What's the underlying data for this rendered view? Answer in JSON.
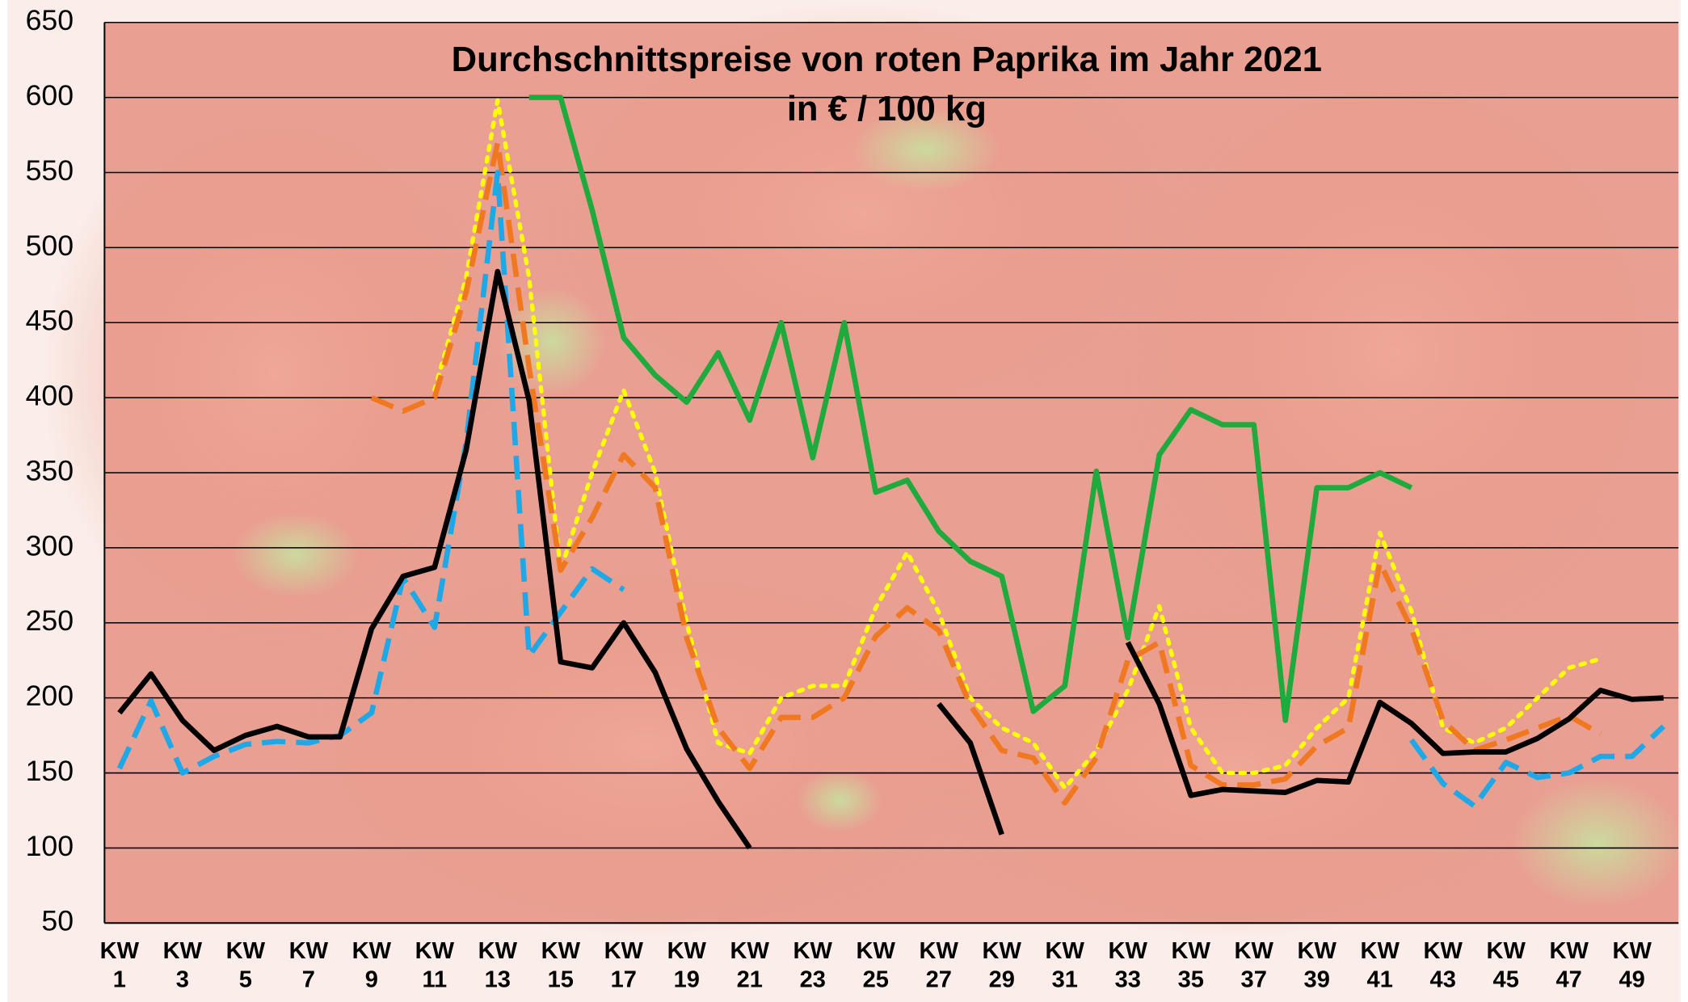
{
  "chart_data": {
    "type": "line",
    "title": "Durchschnittspreise von roten Paprika im Jahr 2021",
    "subtitle": "in € / 100 kg",
    "categories": [
      "KW 1",
      null,
      "KW 3",
      null,
      "KW 5",
      null,
      "KW 7",
      null,
      "KW 9",
      null,
      "KW 11",
      null,
      "KW 13",
      null,
      "KW 15",
      null,
      "KW 17",
      null,
      "KW 19",
      null,
      "KW 21",
      null,
      "KW 23",
      null,
      "KW 25",
      null,
      "KW 27",
      null,
      "KW 29",
      null,
      "KW 31",
      null,
      "KW 33",
      null,
      "KW 35",
      null,
      "KW 37",
      null,
      "KW 39",
      null,
      "KW 41",
      null,
      "KW 43",
      null,
      "KW 45",
      null,
      "KW 47",
      null,
      "KW 49",
      null
    ],
    "series": [
      {
        "color": "#ffff00",
        "dash": "dotted",
        "values": [
          null,
          null,
          null,
          null,
          null,
          null,
          null,
          null,
          null,
          null,
          405,
          480,
          598,
          480,
          285,
          350,
          405,
          350,
          250,
          170,
          163,
          200,
          208,
          208,
          260,
          297,
          257,
          200,
          180,
          170,
          140,
          165,
          205,
          261,
          180,
          150,
          150,
          155,
          180,
          200,
          310,
          258,
          180,
          170,
          180,
          200,
          220,
          226,
          null,
          null
        ]
      },
      {
        "color": "#f07820",
        "dash": "dashed",
        "values": [
          null,
          null,
          null,
          null,
          null,
          null,
          null,
          null,
          400,
          391,
          400,
          470,
          570,
          420,
          285,
          320,
          362,
          340,
          240,
          180,
          153,
          187,
          187,
          200,
          241,
          260,
          245,
          195,
          165,
          160,
          130,
          160,
          225,
          237,
          155,
          142,
          142,
          146,
          168,
          180,
          290,
          246,
          185,
          165,
          172,
          180,
          188,
          176,
          null,
          null
        ]
      },
      {
        "color": "#1ea8e8",
        "dash": "dashed",
        "values": [
          153,
          198,
          150,
          161,
          169,
          171,
          170,
          175,
          190,
          280,
          247,
          370,
          550,
          228,
          257,
          286,
          272,
          null,
          null,
          null,
          null,
          null,
          null,
          null,
          null,
          null,
          null,
          null,
          null,
          null,
          null,
          null,
          null,
          null,
          null,
          null,
          null,
          null,
          null,
          null,
          null,
          172,
          143,
          128,
          157,
          147,
          150,
          161,
          161,
          181
        ]
      },
      {
        "color": "#1eaa3c",
        "dash": "solid",
        "values": [
          null,
          null,
          null,
          null,
          null,
          null,
          null,
          null,
          null,
          null,
          null,
          null,
          null,
          600,
          600,
          525,
          440,
          415,
          397,
          430,
          385,
          450,
          360,
          450,
          337,
          345,
          311,
          291,
          281,
          191,
          208,
          351,
          240,
          362,
          392,
          382,
          382,
          185,
          340,
          340,
          350,
          340,
          null,
          null,
          null,
          null,
          null,
          null,
          null,
          null
        ]
      },
      {
        "color": "#000000",
        "dash": "solid",
        "values": [
          190,
          216,
          185,
          165,
          175,
          181,
          174,
          174,
          246,
          281,
          287,
          365,
          484,
          398,
          224,
          220,
          250,
          217,
          166,
          131,
          100,
          null,
          null,
          null,
          null,
          null,
          196,
          170,
          109,
          null,
          null,
          null,
          237,
          196,
          135,
          139,
          138,
          137,
          145,
          144,
          197,
          183,
          163,
          164,
          164,
          173,
          186,
          205,
          199,
          200
        ]
      }
    ],
    "ylim": [
      50,
      650
    ],
    "yticks": [
      50,
      100,
      150,
      200,
      250,
      300,
      350,
      400,
      450,
      500,
      550,
      600,
      650
    ],
    "grid": true
  }
}
